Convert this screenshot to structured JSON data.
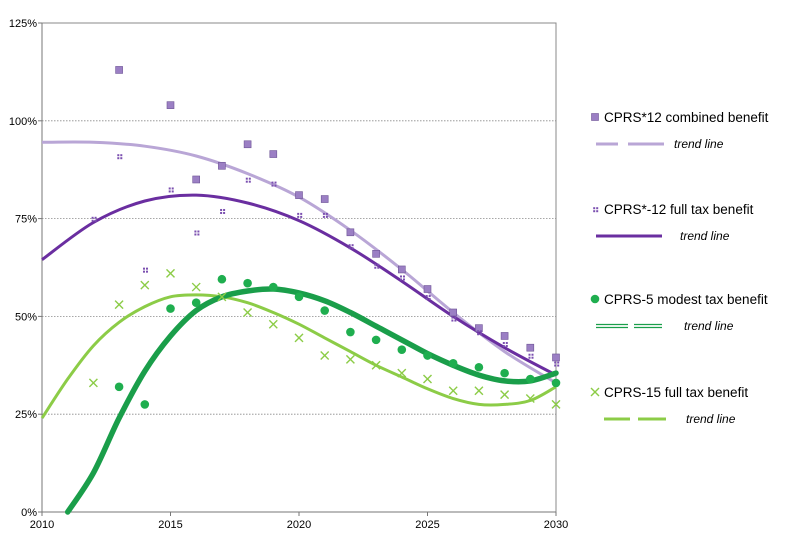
{
  "chart_data": {
    "type": "scatter",
    "xlim": [
      2010,
      2030
    ],
    "ylim": [
      0,
      125
    ],
    "x_ticks": [
      2010,
      2015,
      2020,
      2025,
      2030
    ],
    "x_tick_labels": [
      "2010",
      "2015",
      "2020",
      "2025",
      "2030"
    ],
    "y_ticks": [
      0,
      25,
      50,
      75,
      100,
      125
    ],
    "y_tick_labels": [
      "0%",
      "25%",
      "50%",
      "75%",
      "100%",
      "125%"
    ],
    "grid": "horizontal dotted at 25, 50, 75, 100",
    "legend_position": "right",
    "series": [
      {
        "name": "CPRS*12 combined benefit",
        "marker": "square",
        "color": "#9b7fc4",
        "x": [
          2013,
          2015,
          2016,
          2017,
          2018,
          2019,
          2020,
          2021,
          2022,
          2023,
          2024,
          2025,
          2026,
          2027,
          2028,
          2029,
          2030
        ],
        "y": [
          113,
          104,
          85,
          88.5,
          94,
          91.5,
          81,
          80,
          71.5,
          66,
          62,
          57,
          51,
          47,
          45,
          42,
          39.5
        ],
        "trend": {
          "label": "trend line",
          "style": "long-dash",
          "color": "#b9a6d6",
          "x": [
            2010,
            2012,
            2014,
            2016,
            2018,
            2020,
            2022,
            2024,
            2026,
            2028,
            2030
          ],
          "y": [
            94.5,
            94.5,
            93.5,
            91,
            86.5,
            80.5,
            72,
            62,
            51,
            41,
            33
          ]
        }
      },
      {
        "name": "CPRS*-12 full tax benefit",
        "marker": "dotted-square",
        "color": "#7b4fb0",
        "x": [
          2012,
          2013,
          2014,
          2015,
          2016,
          2017,
          2018,
          2019,
          2020,
          2021,
          2022,
          2023,
          2024,
          2025,
          2026,
          2027,
          2028,
          2029,
          2030
        ],
        "y": [
          75,
          91,
          62,
          82.5,
          71.5,
          77,
          85,
          84,
          76,
          76,
          68,
          63,
          60,
          55,
          49.5,
          46,
          43,
          40,
          38
        ],
        "trend": {
          "label": "trend line",
          "style": "solid",
          "color": "#6a2ea0",
          "x": [
            2010,
            2012,
            2014,
            2016,
            2018,
            2020,
            2022,
            2024,
            2026,
            2028,
            2030
          ],
          "y": [
            64.5,
            74,
            79.5,
            81,
            79,
            74.5,
            67.5,
            59,
            50,
            42,
            35
          ]
        }
      },
      {
        "name": "CPRS-5 modest tax benefit",
        "marker": "circle",
        "color": "#1fae4f",
        "x": [
          2013,
          2014,
          2015,
          2016,
          2017,
          2018,
          2019,
          2020,
          2021,
          2022,
          2023,
          2024,
          2025,
          2026,
          2027,
          2028,
          2029,
          2030
        ],
        "y": [
          32,
          27.5,
          52,
          53.5,
          59.5,
          58.5,
          57.5,
          55,
          51.5,
          46,
          44,
          41.5,
          40,
          38,
          37,
          35.5,
          34,
          33
        ],
        "trend": {
          "label": "trend line",
          "style": "double",
          "color": "#1a9e4a",
          "x": [
            2011,
            2012,
            2013,
            2014,
            2015,
            2016,
            2017,
            2018,
            2019,
            2020,
            2021,
            2022,
            2023,
            2024,
            2025,
            2026,
            2027,
            2028,
            2029,
            2030
          ],
          "y": [
            0,
            10,
            24,
            36,
            45,
            51.5,
            55,
            56.5,
            57,
            56,
            54,
            51,
            47.5,
            44,
            40.5,
            37.5,
            35,
            33.5,
            33.5,
            35.5
          ]
        }
      },
      {
        "name": "CPRS-15 full tax benefit",
        "marker": "x",
        "color": "#8ccc47",
        "x": [
          2012,
          2013,
          2014,
          2015,
          2016,
          2017,
          2018,
          2019,
          2020,
          2021,
          2022,
          2023,
          2024,
          2025,
          2026,
          2027,
          2028,
          2029,
          2030
        ],
        "y": [
          33,
          53,
          58,
          61,
          57.5,
          55,
          51,
          48,
          44.5,
          40,
          39,
          37.5,
          35.5,
          34,
          31,
          31,
          30,
          29,
          27.5
        ],
        "trend": {
          "label": "trend line",
          "style": "dashed",
          "color": "#8ccc47",
          "x": [
            2010,
            2011,
            2012,
            2013,
            2014,
            2015,
            2016,
            2017,
            2018,
            2019,
            2020,
            2021,
            2022,
            2023,
            2024,
            2025,
            2026,
            2027,
            2028,
            2029,
            2030
          ],
          "y": [
            24,
            34,
            42.5,
            48.5,
            52.5,
            55,
            55.5,
            55,
            53.5,
            51,
            48,
            44.5,
            41,
            37.5,
            34.5,
            31.5,
            29,
            27.5,
            27.5,
            28.5,
            32
          ]
        }
      }
    ]
  }
}
